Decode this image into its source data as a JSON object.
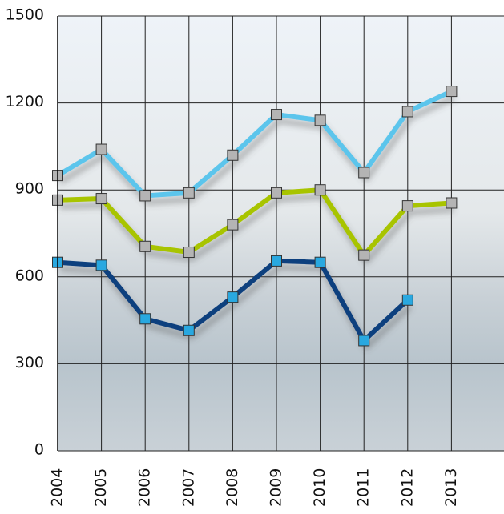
{
  "chart_data": {
    "type": "line",
    "categories": [
      "2004",
      "2005",
      "2006",
      "2007",
      "2008",
      "2009",
      "2010",
      "2011",
      "2012",
      "2013"
    ],
    "series": [
      {
        "color": "#5bc5ec",
        "marker_color": "#b4b4b4",
        "values": [
          950,
          1040,
          880,
          890,
          1020,
          1160,
          1140,
          960,
          1170,
          1240
        ]
      },
      {
        "color": "#a8c400",
        "marker_color": "#b4b4b4",
        "values": [
          865,
          870,
          705,
          685,
          780,
          890,
          900,
          675,
          845,
          855
        ]
      },
      {
        "color": "#0b3f7e",
        "marker_color": "#29a8e0",
        "values": [
          650,
          640,
          455,
          415,
          530,
          655,
          650,
          380,
          520,
          null
        ]
      }
    ],
    "ylim": [
      0,
      1500
    ],
    "yticks": [
      0,
      300,
      600,
      900,
      1200,
      1500
    ],
    "grid": true
  }
}
